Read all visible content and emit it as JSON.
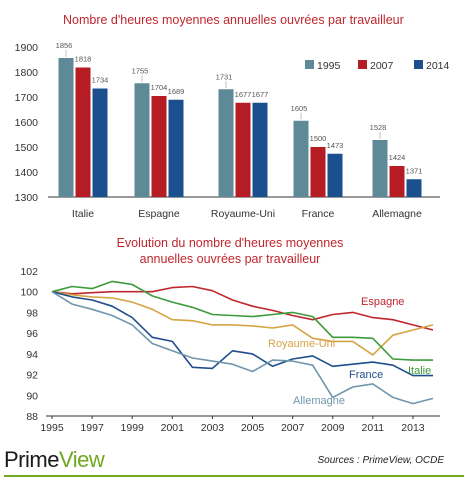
{
  "chart_data": [
    {
      "type": "bar",
      "title": "Nombre d'heures moyennes annuelles ouvrées par travailleur",
      "categories": [
        "Italie",
        "Espagne",
        "Royaume-Uni",
        "France",
        "Allemagne"
      ],
      "series": [
        {
          "name": "1995",
          "color": "#5d8a96",
          "values": [
            1856,
            1755,
            1731,
            1605,
            1528
          ]
        },
        {
          "name": "2007",
          "color": "#b51c24",
          "values": [
            1818,
            1704,
            1677,
            1500,
            1424
          ]
        },
        {
          "name": "2014",
          "color": "#1b4f8e",
          "values": [
            1734,
            1689,
            1677,
            1473,
            1371
          ]
        }
      ],
      "data_labels": [
        [
          "1856",
          "1818",
          "1734"
        ],
        [
          "1755",
          "1704",
          "1689"
        ],
        [
          "1731",
          "1677",
          "1677"
        ],
        [
          "1605",
          "1500",
          "1473"
        ],
        [
          "1528",
          "1424",
          "1371"
        ]
      ],
      "ylim": [
        1300,
        1900
      ],
      "yticks": [
        "1900",
        "1800",
        "1700",
        "1600",
        "1500",
        "1400",
        "1300"
      ],
      "legend": "top-right",
      "grid": false
    },
    {
      "type": "line",
      "title": [
        "Evolution du nombre d'heures moyennes",
        "annuelles ouvrées par travailleur"
      ],
      "x": [
        1995,
        1996,
        1997,
        1998,
        1999,
        2000,
        2001,
        2002,
        2003,
        2004,
        2005,
        2006,
        2007,
        2008,
        2009,
        2010,
        2011,
        2012,
        2013,
        2014
      ],
      "xticks": [
        "1995",
        "1997",
        "1999",
        "2001",
        "2003",
        "2005",
        "2007",
        "2009",
        "2011",
        "2013"
      ],
      "yticks": [
        "102",
        "100",
        "98",
        "96",
        "94",
        "92",
        "90",
        "88"
      ],
      "ylim": [
        88,
        102
      ],
      "xlim": [
        1995,
        2014
      ],
      "grid": false,
      "series": [
        {
          "name": "Espagne",
          "color": "#c0262d",
          "values": [
            100,
            99.8,
            99.9,
            100,
            100,
            100,
            100.4,
            100.5,
            100.1,
            99.2,
            98.6,
            98.2,
            97.7,
            97.3,
            97.8,
            98,
            97.5,
            97.3,
            96.8,
            96.3
          ]
        },
        {
          "name": "Royaume-Uni",
          "color": "#d5a445",
          "values": [
            100,
            99.7,
            99.5,
            99.4,
            99,
            98.3,
            97.3,
            97.2,
            96.8,
            96.8,
            96.7,
            96.5,
            96.8,
            95.5,
            95.2,
            95.2,
            93.9,
            95.8,
            96.3,
            96.8
          ]
        },
        {
          "name": "Italie",
          "color": "#3c9a3c",
          "values": [
            100,
            100.5,
            100.3,
            101,
            100.7,
            99.6,
            99,
            98.5,
            97.8,
            97.7,
            97.6,
            97.8,
            98,
            97.6,
            95.6,
            95.6,
            95.5,
            93.5,
            93.4,
            93.4
          ]
        },
        {
          "name": "France",
          "color": "#1f4e8c",
          "values": [
            100,
            99.5,
            99.2,
            98.6,
            97.5,
            95.6,
            95.2,
            92.7,
            92.6,
            94.3,
            94,
            92.8,
            93.5,
            93.8,
            92.8,
            93,
            93.2,
            92.9,
            91.9,
            91.9
          ]
        },
        {
          "name": "Allemagne",
          "color": "#6f96ac",
          "values": [
            100,
            98.8,
            98.3,
            97.7,
            96.8,
            95,
            94.3,
            93.6,
            93.3,
            93,
            92.3,
            93.4,
            93.3,
            92.9,
            89.8,
            90.8,
            91.1,
            89.8,
            89.2,
            89.7
          ]
        }
      ]
    }
  ],
  "footer": {
    "brand_prime": "Prime",
    "brand_view": "View",
    "source": "Sources : PrimeView, OCDE"
  }
}
